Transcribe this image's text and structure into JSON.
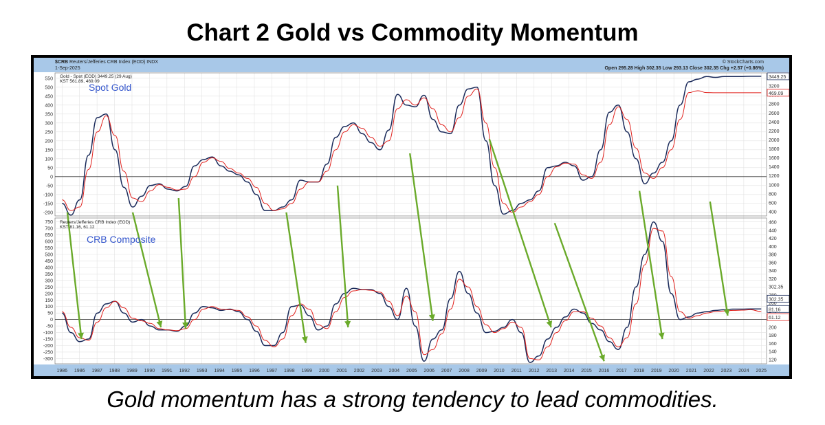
{
  "page": {
    "title": "Chart 2 Gold vs Commodity Momentum",
    "caption": "Gold momentum has a strong tendency to lead commodities."
  },
  "header": {
    "symbol": "$CRB",
    "index_name": "Reuters/Jefferies CRB Index (EOD) INDX",
    "date": "1-Sep-2025",
    "ohlc": "Open 295.28  High 302.35  Low 293.13  Close 302.35  Chg +2.57 (+0.86%)",
    "credit": "© StockCharts.com"
  },
  "colors": {
    "kst": "#1a2a5a",
    "signal": "#e0201c",
    "arrow": "#6aaa2a",
    "panel_label": "#3355cc",
    "header_bg": "#a8c8e8",
    "axis_bg": "#a8c8e8"
  },
  "chart_data": [
    {
      "type": "line",
      "panel": "top",
      "annotation": "Spot Gold",
      "legend": [
        "Gold - Spot (EOD) 3449.25 (29 Aug)",
        "KST 561.89, 469.09"
      ],
      "ylim": [
        -220,
        580
      ],
      "yticks": [
        -200,
        -150,
        -100,
        -50,
        0,
        50,
        100,
        150,
        200,
        250,
        300,
        350,
        400,
        450,
        500,
        550
      ],
      "right_ticks": [
        "3449.25",
        "3200",
        "3000",
        "2800",
        "2600",
        "2400",
        "2200",
        "2000",
        "1800",
        "1600",
        "1400",
        "1200",
        "1000",
        "800",
        "600",
        "400"
      ],
      "right_labels": [
        "3449.25",
        "469.09"
      ],
      "zero_line": true,
      "series": [
        {
          "name": "KST",
          "x": [
            1986,
            1986.5,
            1987,
            1987.5,
            1988,
            1988.5,
            1989,
            1989.5,
            1990,
            1990.5,
            1991,
            1991.5,
            1992,
            1992.5,
            1993,
            1993.5,
            1994,
            1994.5,
            1995,
            1995.5,
            1996,
            1996.5,
            1997,
            1997.5,
            1998,
            1998.5,
            1999,
            1999.5,
            2000,
            2000.5,
            2001,
            2001.5,
            2002,
            2002.5,
            2003,
            2003.5,
            2004,
            2004.5,
            2005,
            2005.5,
            2006,
            2006.5,
            2007,
            2007.5,
            2008,
            2008.5,
            2009,
            2009.5,
            2010,
            2010.5,
            2011,
            2011.5,
            2012,
            2012.5,
            2013,
            2013.5,
            2014,
            2014.5,
            2015,
            2015.5,
            2016,
            2016.5,
            2017,
            2017.5,
            2018,
            2018.5,
            2019,
            2019.5,
            2020,
            2020.5,
            2021,
            2021.5,
            2022,
            2022.5,
            2023,
            2023.5,
            2024,
            2024.5,
            2025,
            2025.6
          ],
          "values": [
            -150,
            -215,
            -130,
            120,
            330,
            350,
            150,
            -60,
            -170,
            -110,
            -50,
            -40,
            -70,
            -80,
            -55,
            60,
            95,
            110,
            60,
            30,
            10,
            -30,
            -100,
            -190,
            -190,
            -170,
            -130,
            -20,
            -30,
            -30,
            70,
            220,
            280,
            300,
            240,
            190,
            150,
            260,
            460,
            400,
            390,
            455,
            320,
            250,
            240,
            400,
            490,
            500,
            200,
            -50,
            -210,
            -190,
            -150,
            -130,
            -80,
            50,
            60,
            80,
            60,
            -20,
            0,
            150,
            360,
            400,
            250,
            100,
            -40,
            20,
            80,
            200,
            400,
            530,
            545,
            560,
            555,
            560,
            560,
            560,
            561,
            561
          ]
        },
        {
          "name": "Signal",
          "x": [
            1986,
            1986.5,
            1987,
            1987.5,
            1988,
            1988.5,
            1989,
            1989.5,
            1990,
            1990.5,
            1991,
            1991.5,
            1992,
            1992.5,
            1993,
            1993.5,
            1994,
            1994.5,
            1995,
            1995.5,
            1996,
            1996.5,
            1997,
            1997.5,
            1998,
            1998.5,
            1999,
            1999.5,
            2000,
            2000.5,
            2001,
            2001.5,
            2002,
            2002.5,
            2003,
            2003.5,
            2004,
            2004.5,
            2005,
            2005.5,
            2006,
            2006.5,
            2007,
            2007.5,
            2008,
            2008.5,
            2009,
            2009.5,
            2010,
            2010.5,
            2011,
            2011.5,
            2012,
            2012.5,
            2013,
            2013.5,
            2014,
            2014.5,
            2015,
            2015.5,
            2016,
            2016.5,
            2017,
            2017.5,
            2018,
            2018.5,
            2019,
            2019.5,
            2020,
            2020.5,
            2021,
            2021.5,
            2022,
            2022.5,
            2023,
            2023.5,
            2024,
            2024.5,
            2025,
            2025.6
          ],
          "values": [
            -130,
            -190,
            -170,
            40,
            250,
            340,
            230,
            30,
            -120,
            -140,
            -80,
            -45,
            -60,
            -75,
            -70,
            0,
            80,
            105,
            85,
            45,
            20,
            -10,
            -60,
            -150,
            -190,
            -180,
            -150,
            -70,
            -30,
            -30,
            30,
            150,
            250,
            290,
            270,
            220,
            170,
            200,
            380,
            430,
            400,
            440,
            380,
            290,
            250,
            330,
            450,
            490,
            300,
            50,
            -150,
            -200,
            -170,
            -140,
            -100,
            0,
            55,
            75,
            70,
            10,
            -10,
            80,
            290,
            390,
            320,
            160,
            20,
            -10,
            50,
            150,
            320,
            470,
            480,
            470,
            469,
            469,
            469,
            469,
            469,
            469
          ]
        }
      ]
    },
    {
      "type": "line",
      "panel": "bottom",
      "annotation": "CRB Composite",
      "legend": [
        "Reuters/Jefferies CRB Index (EOD)",
        "KST 81.16, 61.12"
      ],
      "ylim": [
        -340,
        780
      ],
      "yticks": [
        -300,
        -250,
        -200,
        -150,
        -100,
        -50,
        0,
        50,
        100,
        150,
        200,
        250,
        300,
        350,
        400,
        450,
        500,
        550,
        600,
        650,
        700,
        750
      ],
      "right_ticks": [
        "460",
        "440",
        "420",
        "400",
        "380",
        "360",
        "340",
        "320",
        "302.35",
        "280",
        "260",
        "240",
        "220",
        "200",
        "180",
        "160",
        "140",
        "120"
      ],
      "right_labels": [
        "302.35",
        "81.16",
        "61.12"
      ],
      "zero_line": true,
      "series": [
        {
          "name": "KST",
          "x": [
            1986,
            1986.5,
            1987,
            1987.5,
            1988,
            1988.5,
            1989,
            1989.5,
            1990,
            1990.5,
            1991,
            1991.5,
            1992,
            1992.5,
            1993,
            1993.5,
            1994,
            1994.5,
            1995,
            1995.5,
            1996,
            1996.5,
            1997,
            1997.5,
            1998,
            1998.5,
            1999,
            1999.5,
            2000,
            2000.5,
            2001,
            2001.5,
            2002,
            2002.5,
            2003,
            2003.5,
            2004,
            2004.5,
            2005,
            2005.5,
            2006,
            2006.5,
            2007,
            2007.5,
            2008,
            2008.5,
            2009,
            2009.5,
            2010,
            2010.5,
            2011,
            2011.5,
            2012,
            2012.5,
            2013,
            2013.5,
            2014,
            2014.5,
            2015,
            2015.5,
            2016,
            2016.5,
            2017,
            2017.5,
            2018,
            2018.5,
            2019,
            2019.5,
            2020,
            2020.5,
            2021,
            2021.5,
            2022,
            2022.5,
            2023,
            2023.5,
            2024,
            2024.5,
            2025,
            2025.6
          ],
          "values": [
            50,
            -100,
            -170,
            -150,
            50,
            120,
            140,
            50,
            -20,
            0,
            -50,
            -80,
            -80,
            -90,
            -50,
            50,
            100,
            90,
            70,
            80,
            60,
            0,
            -90,
            -200,
            -200,
            -100,
            100,
            110,
            30,
            -80,
            -50,
            120,
            200,
            240,
            230,
            230,
            200,
            100,
            0,
            240,
            -50,
            -320,
            -150,
            -80,
            160,
            370,
            200,
            50,
            -100,
            -90,
            -60,
            0,
            -100,
            -330,
            -280,
            -150,
            -60,
            20,
            80,
            50,
            -30,
            -80,
            -170,
            -230,
            -60,
            250,
            500,
            750,
            600,
            200,
            0,
            20,
            50,
            60,
            70,
            75,
            80,
            80,
            81,
            81
          ]
        },
        {
          "name": "Signal",
          "x": [
            1986,
            1986.5,
            1987,
            1987.5,
            1988,
            1988.5,
            1989,
            1989.5,
            1990,
            1990.5,
            1991,
            1991.5,
            1992,
            1992.5,
            1993,
            1993.5,
            1994,
            1994.5,
            1995,
            1995.5,
            1996,
            1996.5,
            1997,
            1997.5,
            1998,
            1998.5,
            1999,
            1999.5,
            2000,
            2000.5,
            2001,
            2001.5,
            2002,
            2002.5,
            2003,
            2003.5,
            2004,
            2004.5,
            2005,
            2005.5,
            2006,
            2006.5,
            2007,
            2007.5,
            2008,
            2008.5,
            2009,
            2009.5,
            2010,
            2010.5,
            2011,
            2011.5,
            2012,
            2012.5,
            2013,
            2013.5,
            2014,
            2014.5,
            2015,
            2015.5,
            2016,
            2016.5,
            2017,
            2017.5,
            2018,
            2018.5,
            2019,
            2019.5,
            2020,
            2020.5,
            2021,
            2021.5,
            2022,
            2022.5,
            2023,
            2023.5,
            2024,
            2024.5,
            2025,
            2025.6
          ],
          "values": [
            60,
            -60,
            -140,
            -160,
            -20,
            90,
            140,
            90,
            10,
            -10,
            -30,
            -70,
            -80,
            -85,
            -70,
            0,
            80,
            100,
            80,
            75,
            70,
            20,
            -50,
            -160,
            -210,
            -150,
            30,
            120,
            80,
            -40,
            -70,
            60,
            170,
            220,
            230,
            225,
            210,
            140,
            30,
            180,
            60,
            -270,
            -230,
            -110,
            80,
            310,
            250,
            100,
            -40,
            -100,
            -70,
            -20,
            -60,
            -300,
            -310,
            -210,
            -100,
            -10,
            60,
            60,
            10,
            -50,
            -140,
            -210,
            -140,
            120,
            420,
            700,
            680,
            330,
            60,
            10,
            30,
            50,
            60,
            65,
            70,
            72,
            75,
            61
          ]
        }
      ]
    }
  ],
  "x_axis": {
    "labels": [
      "1986",
      "1986",
      "1987",
      "1988",
      "1989",
      "1990",
      "1991",
      "1992",
      "1993",
      "1994",
      "1995",
      "1996",
      "1997",
      "1998",
      "1999",
      "2000",
      "2001",
      "2002",
      "2003",
      "2004",
      "2005",
      "2006",
      "2007",
      "2008",
      "2009",
      "2010",
      "2011",
      "2012",
      "2013",
      "2014",
      "2015",
      "2016",
      "2017",
      "2018",
      "2019",
      "2020",
      "2021",
      "2022",
      "2023",
      "2024",
      "2025"
    ],
    "range": [
      1985.6,
      2025.9
    ]
  },
  "arrows": [
    {
      "from": [
        1986.3,
        -200
      ],
      "to": [
        1987.1,
        -150
      ]
    },
    {
      "from": [
        1990.0,
        -200
      ],
      "to": [
        1991.6,
        -60
      ]
    },
    {
      "from": [
        1992.6,
        -120
      ],
      "to": [
        1993.0,
        -70
      ]
    },
    {
      "from": [
        1998.7,
        -200
      ],
      "to": [
        1999.8,
        -180
      ]
    },
    {
      "from": [
        2001.6,
        -50
      ],
      "to": [
        2002.2,
        -60
      ]
    },
    {
      "from": [
        2005.7,
        130
      ],
      "to": [
        2007.0,
        -10
      ]
    },
    {
      "from": [
        2010.2,
        210
      ],
      "to": [
        2013.7,
        -60
      ]
    },
    {
      "from": [
        2013.9,
        -260
      ],
      "to": [
        2016.7,
        -320
      ]
    },
    {
      "from": [
        2018.7,
        -80
      ],
      "to": [
        2020.0,
        -150
      ]
    },
    {
      "from": [
        2022.7,
        -140
      ],
      "to": [
        2023.7,
        30
      ]
    }
  ]
}
